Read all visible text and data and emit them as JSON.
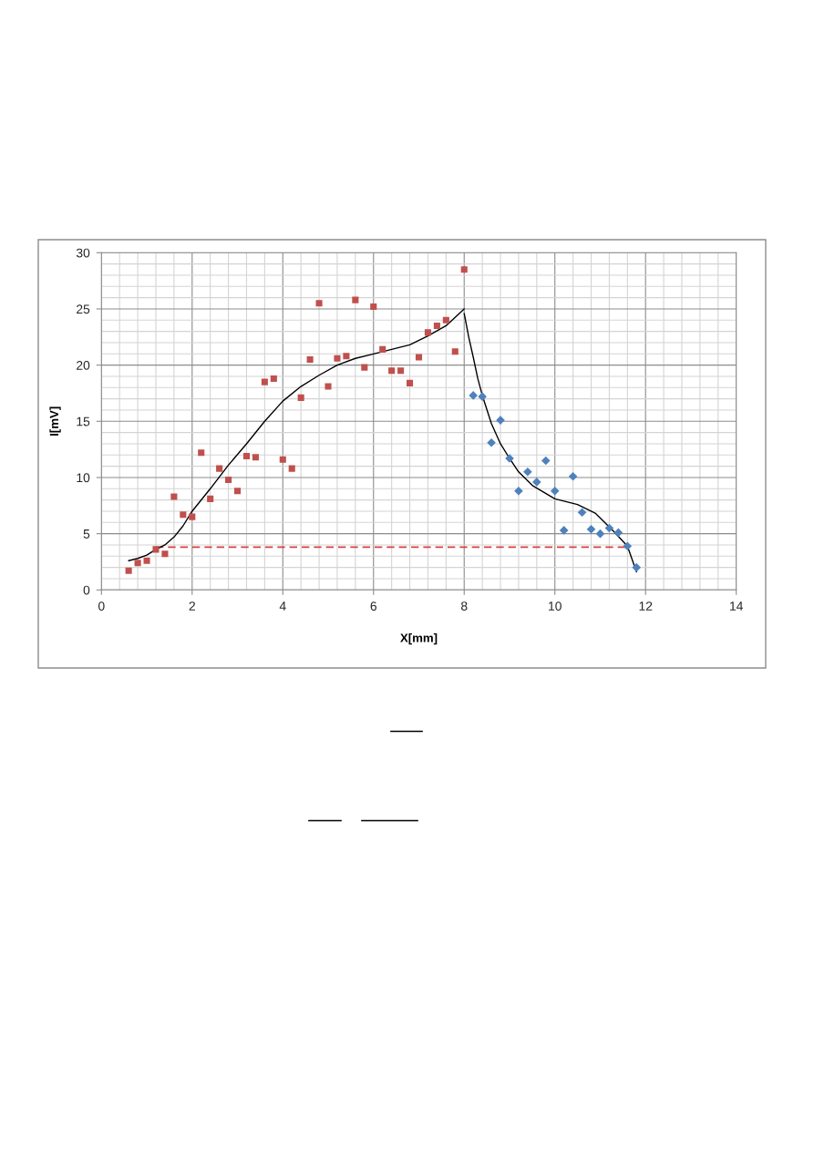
{
  "chart_data": {
    "type": "scatter",
    "xlabel": "X[mm]",
    "ylabel": "I[mV]",
    "xlim": [
      0,
      14
    ],
    "ylim": [
      0,
      30
    ],
    "xticks": [
      0,
      {
        "value": 0.4,
        "label": null
      },
      {
        "value": 0.8,
        "label": null
      },
      {
        "value": 1.2,
        "label": null
      },
      {
        "value": 1.6,
        "label": null
      },
      2,
      {
        "value": 2.4,
        "label": null
      },
      {
        "value": 2.8,
        "label": null
      },
      {
        "value": 3.2,
        "label": null
      },
      {
        "value": 3.6,
        "label": null
      },
      4,
      {
        "value": 4.4,
        "label": null
      },
      {
        "value": 4.8,
        "label": null
      },
      {
        "value": 5.2,
        "label": null
      },
      {
        "value": 5.6,
        "label": null
      },
      6,
      {
        "value": 6.4,
        "label": null
      },
      {
        "value": 6.8,
        "label": null
      },
      {
        "value": 7.2,
        "label": null
      },
      {
        "value": 7.6,
        "label": null
      },
      8,
      {
        "value": 8.4,
        "label": null
      },
      {
        "value": 8.8,
        "label": null
      },
      {
        "value": 9.2,
        "label": null
      },
      {
        "value": 9.6,
        "label": null
      },
      10,
      {
        "value": 10.4,
        "label": null
      },
      {
        "value": 10.8,
        "label": null
      },
      {
        "value": 11.2,
        "label": null
      },
      {
        "value": 11.6,
        "label": null
      },
      12,
      {
        "value": 12.4,
        "label": null
      },
      {
        "value": 12.8,
        "label": null
      },
      {
        "value": 13.2,
        "label": null
      },
      {
        "value": 13.6,
        "label": null
      },
      14
    ],
    "yticks": [
      0,
      {
        "value": 1,
        "label": null
      },
      {
        "value": 2,
        "label": null
      },
      {
        "value": 3,
        "label": null
      },
      {
        "value": 4,
        "label": null
      },
      5,
      {
        "value": 6,
        "label": null
      },
      {
        "value": 7,
        "label": null
      },
      {
        "value": 8,
        "label": null
      },
      {
        "value": 9,
        "label": null
      },
      10,
      {
        "value": 11,
        "label": null
      },
      {
        "value": 12,
        "label": null
      },
      {
        "value": 13,
        "label": null
      },
      {
        "value": 14,
        "label": null
      },
      15,
      {
        "value": 16,
        "label": null
      },
      {
        "value": 17,
        "label": null
      },
      {
        "value": 18,
        "label": null
      },
      {
        "value": 19,
        "label": null
      },
      20,
      {
        "value": 21,
        "label": null
      },
      {
        "value": 22,
        "label": null
      },
      {
        "value": 23,
        "label": null
      },
      {
        "value": 24,
        "label": null
      },
      25,
      {
        "value": 26,
        "label": null
      },
      {
        "value": 27,
        "label": null
      },
      {
        "value": 28,
        "label": null
      },
      {
        "value": 29,
        "label": null
      },
      30
    ],
    "grid": true,
    "series": [
      {
        "type": "line",
        "color": "#d94040",
        "line_style": "dashed",
        "marker": "none",
        "x": [
          1.2,
          11.6
        ],
        "values": [
          3.8,
          3.8
        ]
      },
      {
        "color": "#c0504d",
        "marker": "square",
        "x": [
          0.6,
          0.8,
          1.0,
          1.2,
          1.4,
          1.6,
          1.8,
          2.0,
          2.2,
          2.4,
          2.6,
          2.8,
          3.0,
          3.2,
          3.4,
          3.6,
          3.8,
          4.0,
          4.2,
          4.4,
          4.6,
          4.8,
          5.0,
          5.2,
          5.4,
          5.6,
          5.8,
          6.0,
          6.2,
          6.4,
          6.6,
          6.8,
          7.0,
          7.2,
          7.4,
          7.6,
          7.8,
          8.0
        ],
        "values": [
          1.7,
          2.4,
          2.6,
          3.6,
          3.2,
          8.3,
          6.7,
          6.5,
          12.2,
          8.1,
          10.8,
          9.8,
          8.8,
          11.9,
          11.8,
          18.5,
          18.8,
          11.6,
          10.8,
          17.1,
          20.5,
          25.5,
          18.1,
          20.6,
          20.8,
          25.8,
          19.8,
          25.2,
          21.4,
          19.5,
          19.5,
          18.4,
          20.7,
          22.9,
          23.5,
          24.0,
          21.2,
          28.5
        ]
      },
      {
        "color": "#4f81bd",
        "marker": "diamond",
        "x": [
          8.2,
          8.4,
          8.6,
          8.8,
          9.0,
          9.2,
          9.4,
          9.6,
          9.8,
          10.0,
          10.2,
          10.4,
          10.6,
          10.8,
          11.0,
          11.2,
          11.4,
          11.6,
          11.8
        ],
        "values": [
          17.3,
          17.2,
          13.1,
          15.1,
          11.7,
          8.8,
          10.5,
          9.6,
          11.5,
          8.8,
          5.3,
          10.1,
          6.9,
          5.4,
          5.0,
          5.5,
          5.1,
          3.9,
          2.0
        ]
      },
      {
        "type": "line",
        "color": "#000000",
        "line_style": "solid",
        "marker": "none",
        "x": [
          0.6,
          0.8,
          1.0,
          1.2,
          1.4,
          1.6,
          1.8,
          2.0,
          2.4,
          2.8,
          3.2,
          3.6,
          4.0,
          4.4,
          4.8,
          5.2,
          5.6,
          6.0,
          6.4,
          6.8,
          7.2,
          7.6,
          8.0
        ],
        "values": [
          2.6,
          2.8,
          3.1,
          3.6,
          4.0,
          4.7,
          5.7,
          7.0,
          9.0,
          11.1,
          13.0,
          15.0,
          16.8,
          18.1,
          19.1,
          20.0,
          20.6,
          21.0,
          21.4,
          21.8,
          22.6,
          23.5,
          25.0
        ]
      },
      {
        "type": "line",
        "color": "#000000",
        "line_style": "solid",
        "marker": "none",
        "x": [
          8.0,
          8.1,
          8.2,
          8.3,
          8.4,
          8.6,
          8.8,
          9.0,
          9.2,
          9.5,
          10.0,
          10.5,
          10.9,
          11.3,
          11.6,
          11.8
        ],
        "values": [
          24.6,
          22.5,
          20.7,
          18.8,
          17.3,
          14.8,
          13.0,
          11.7,
          10.5,
          9.3,
          8.1,
          7.6,
          6.8,
          5.2,
          3.9,
          1.6
        ]
      }
    ]
  }
}
